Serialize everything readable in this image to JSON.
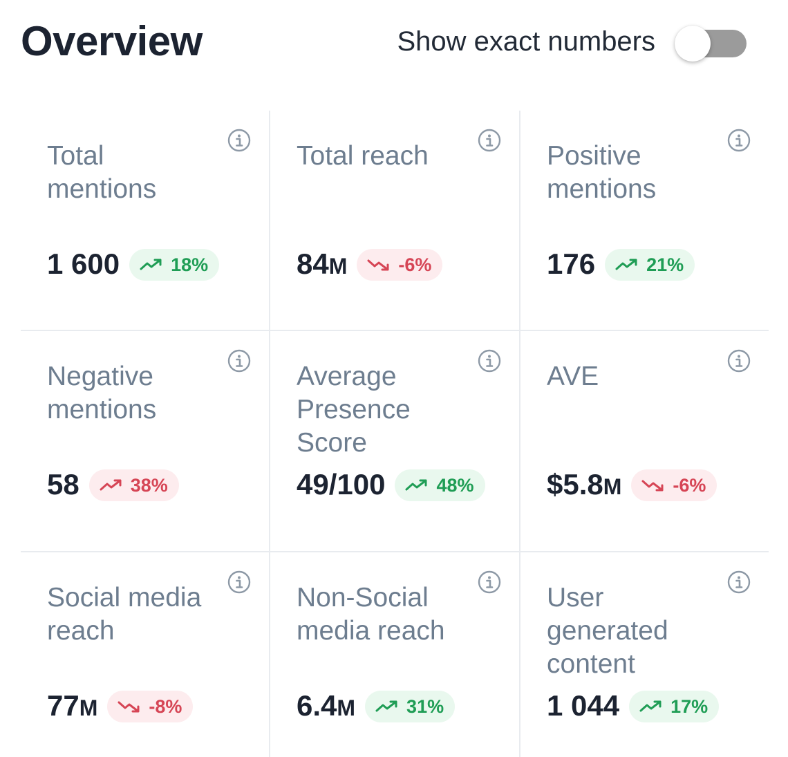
{
  "header": {
    "title": "Overview",
    "toggle_label": "Show exact numbers",
    "toggle_on": false
  },
  "colors": {
    "positive": "#1f9d55",
    "positive_bg": "#e9f8ee",
    "negative": "#d64555",
    "negative_bg": "#fdecee",
    "label": "#6d7d8f",
    "value": "#1c2331"
  },
  "metrics": [
    {
      "label": "Total mentions",
      "value": "1 600",
      "unit": "",
      "change": "18%",
      "trend": "up",
      "tone": "green",
      "icon": "info-icon"
    },
    {
      "label": "Total reach",
      "value": "84",
      "unit": "M",
      "change": "-6%",
      "trend": "down",
      "tone": "red",
      "icon": "info-icon"
    },
    {
      "label": "Positive mentions",
      "value": "176",
      "unit": "",
      "change": "21%",
      "trend": "up",
      "tone": "green",
      "icon": "info-icon"
    },
    {
      "label": "Negative mentions",
      "value": "58",
      "unit": "",
      "change": "38%",
      "trend": "up",
      "tone": "red",
      "icon": "info-icon"
    },
    {
      "label": "Average Presence Score",
      "value": "49/100",
      "unit": "",
      "change": "48%",
      "trend": "up",
      "tone": "green",
      "icon": "info-icon"
    },
    {
      "label": "AVE",
      "value": "$5.8",
      "unit": "M",
      "change": "-6%",
      "trend": "down",
      "tone": "red",
      "icon": "info-icon"
    },
    {
      "label": "Social media reach",
      "value": "77",
      "unit": "M",
      "change": "-8%",
      "trend": "down",
      "tone": "red",
      "icon": "info-icon"
    },
    {
      "label": "Non-Social media reach",
      "value": "6.4",
      "unit": "M",
      "change": "31%",
      "trend": "up",
      "tone": "green",
      "icon": "info-icon"
    },
    {
      "label": "User generated content",
      "value": "1 044",
      "unit": "",
      "change": "17%",
      "trend": "up",
      "tone": "green",
      "icon": "info-icon"
    }
  ]
}
